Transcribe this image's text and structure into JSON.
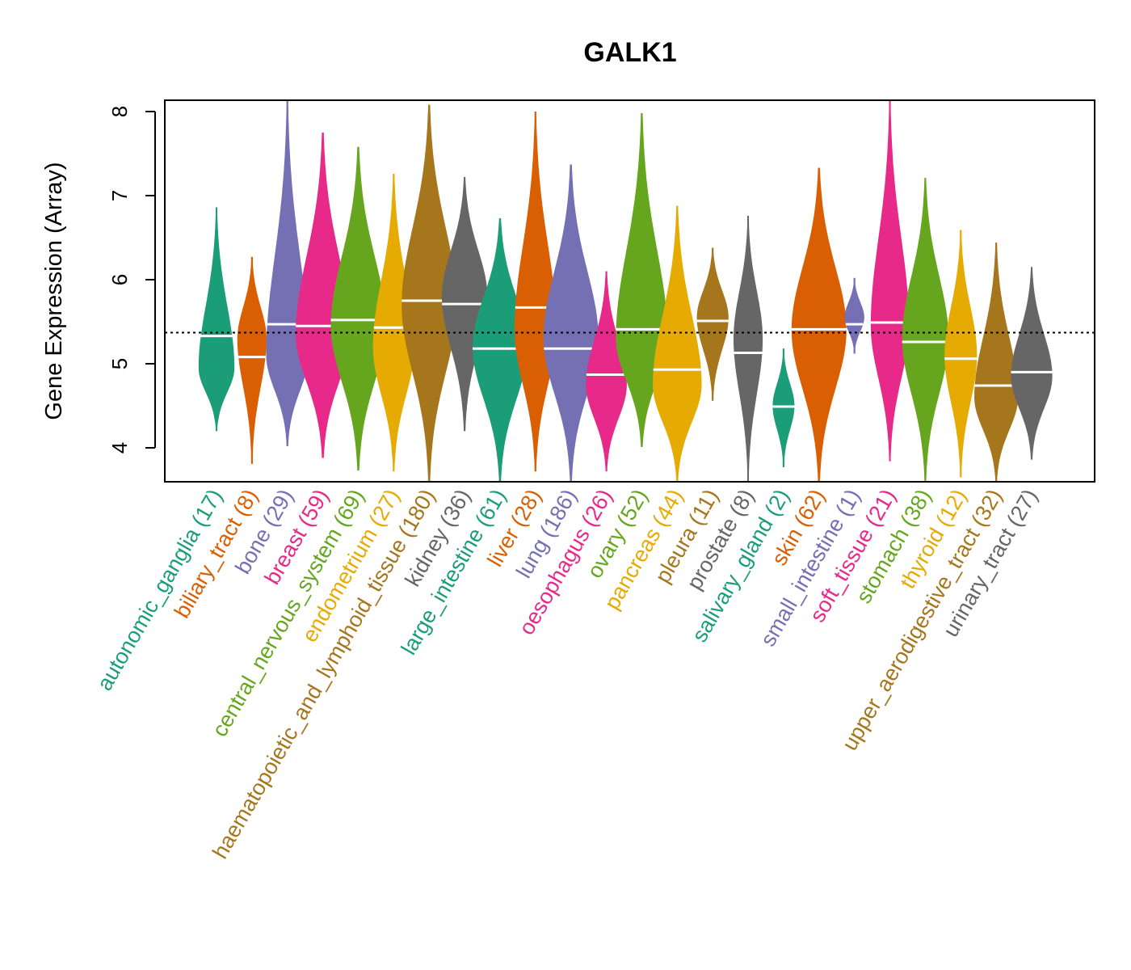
{
  "chart_data": {
    "type": "violin",
    "title": "GALK1",
    "xlabel": "",
    "ylabel": "Gene Expression (Array)",
    "ylim": [
      3.6,
      8.13
    ],
    "yticks": [
      4,
      5,
      6,
      7,
      8
    ],
    "reference_line": 5.37,
    "grid": false,
    "palette": [
      "#1B9E77",
      "#D95F02",
      "#7570B3",
      "#E7298A",
      "#66A61E",
      "#E6AB02",
      "#A6761D",
      "#666666"
    ],
    "series": [
      {
        "name": "autonomic_ganglia",
        "n": 17,
        "median": 5.33,
        "min": 4.2,
        "max": 6.86,
        "mode": 4.95
      },
      {
        "name": "biliary_tract",
        "n": 8,
        "median": 5.08,
        "min": 3.81,
        "max": 6.27,
        "mode": 5.3
      },
      {
        "name": "bone",
        "n": 29,
        "median": 5.47,
        "min": 4.02,
        "max": 8.13,
        "mode": 5.1
      },
      {
        "name": "breast",
        "n": 59,
        "median": 5.45,
        "min": 3.88,
        "max": 7.75,
        "mode": 5.35
      },
      {
        "name": "central_nervous_system",
        "n": 69,
        "median": 5.52,
        "min": 3.73,
        "max": 7.58,
        "mode": 5.45
      },
      {
        "name": "endometrium",
        "n": 27,
        "median": 5.43,
        "min": 3.72,
        "max": 7.26,
        "mode": 5.2
      },
      {
        "name": "haematopoietic_and_lymphoid_tissue",
        "n": 180,
        "median": 5.75,
        "min": 3.6,
        "max": 8.08,
        "mode": 5.7
      },
      {
        "name": "kidney",
        "n": 36,
        "median": 5.71,
        "min": 4.2,
        "max": 7.22,
        "mode": 5.8
      },
      {
        "name": "large_intestine",
        "n": 61,
        "median": 5.18,
        "min": 3.6,
        "max": 6.73,
        "mode": 5.2
      },
      {
        "name": "liver",
        "n": 28,
        "median": 5.67,
        "min": 3.72,
        "max": 8.0,
        "mode": 5.4
      },
      {
        "name": "lung",
        "n": 186,
        "median": 5.18,
        "min": 3.6,
        "max": 7.37,
        "mode": 5.3
      },
      {
        "name": "oesophagus",
        "n": 26,
        "median": 4.87,
        "min": 3.72,
        "max": 6.1,
        "mode": 4.75
      },
      {
        "name": "ovary",
        "n": 52,
        "median": 5.41,
        "min": 4.01,
        "max": 7.98,
        "mode": 5.3
      },
      {
        "name": "pancreas",
        "n": 44,
        "median": 4.93,
        "min": 3.6,
        "max": 6.88,
        "mode": 4.75
      },
      {
        "name": "pleura",
        "n": 11,
        "median": 5.51,
        "min": 4.56,
        "max": 6.38,
        "mode": 5.55
      },
      {
        "name": "prostate",
        "n": 8,
        "median": 5.13,
        "min": 3.6,
        "max": 6.76,
        "mode": 5.3
      },
      {
        "name": "salivary_gland",
        "n": 2,
        "median": 4.49,
        "min": 3.77,
        "max": 5.18,
        "mode": 4.5
      },
      {
        "name": "skin",
        "n": 62,
        "median": 5.41,
        "min": 3.6,
        "max": 7.33,
        "mode": 5.4
      },
      {
        "name": "small_intestine",
        "n": 1,
        "median": 5.47,
        "min": 5.12,
        "max": 6.02,
        "mode": 5.55
      },
      {
        "name": "soft_tissue",
        "n": 21,
        "median": 5.49,
        "min": 3.84,
        "max": 8.13,
        "mode": 5.45
      },
      {
        "name": "stomach",
        "n": 38,
        "median": 5.26,
        "min": 3.6,
        "max": 7.21,
        "mode": 5.3
      },
      {
        "name": "thyroid",
        "n": 12,
        "median": 5.06,
        "min": 3.65,
        "max": 6.59,
        "mode": 5.1
      },
      {
        "name": "upper_aerodigestive_tract",
        "n": 32,
        "median": 4.74,
        "min": 3.6,
        "max": 6.44,
        "mode": 4.6
      },
      {
        "name": "urinary_tract",
        "n": 27,
        "median": 4.9,
        "min": 3.86,
        "max": 6.15,
        "mode": 4.85
      }
    ]
  }
}
